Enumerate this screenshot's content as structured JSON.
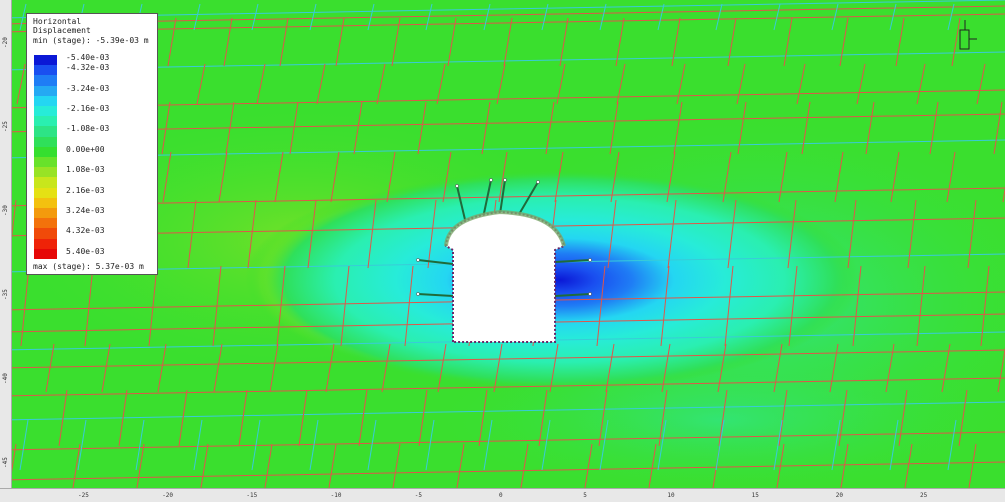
{
  "legend": {
    "title1": "Horizontal",
    "title2": "Displacement",
    "min_text": "min (stage): -5.39e-03 m",
    "max_text": "max (stage): 5.37e-03 m",
    "levels": [
      {
        "label": "-5.40e-03",
        "color": "#0b18d6"
      },
      {
        "label": "-4.32e-03",
        "color": "#1a4ff0"
      },
      {
        "label": "",
        "color": "#1f7df5"
      },
      {
        "label": "-3.24e-03",
        "color": "#25a9f3"
      },
      {
        "label": "",
        "color": "#24d6f2"
      },
      {
        "label": "-2.16e-03",
        "color": "#27ecd8"
      },
      {
        "label": "",
        "color": "#2aefb0"
      },
      {
        "label": "-1.08e-03",
        "color": "#2de486"
      },
      {
        "label": "",
        "color": "#2fe05a"
      },
      {
        "label": "0.00e+00",
        "color": "#35df2f"
      },
      {
        "label": "",
        "color": "#68e22a"
      },
      {
        "label": "1.08e-03",
        "color": "#98e325"
      },
      {
        "label": "",
        "color": "#c8e61c"
      },
      {
        "label": "2.16e-03",
        "color": "#e5e114"
      },
      {
        "label": "",
        "color": "#f3c10f"
      },
      {
        "label": "3.24e-03",
        "color": "#f39a0d"
      },
      {
        "label": "",
        "color": "#f3720b"
      },
      {
        "label": "4.32e-03",
        "color": "#f04a09"
      },
      {
        "label": "",
        "color": "#ef2308"
      },
      {
        "label": "5.40e-03",
        "color": "#e60707"
      }
    ]
  },
  "axes": {
    "x_ticks": [
      "-25",
      "-20",
      "-15",
      "-10",
      "-5",
      "0",
      "5",
      "10",
      "15",
      "20",
      "25"
    ],
    "y_ticks": [
      "-20",
      "-25",
      "-30",
      "-35",
      "-40",
      "-45"
    ]
  },
  "colors": {
    "background": "#3adf2e",
    "mesh_red": "#e0564a",
    "mesh_cyan": "#39cbd8",
    "bolt": "#1f6b3a"
  }
}
